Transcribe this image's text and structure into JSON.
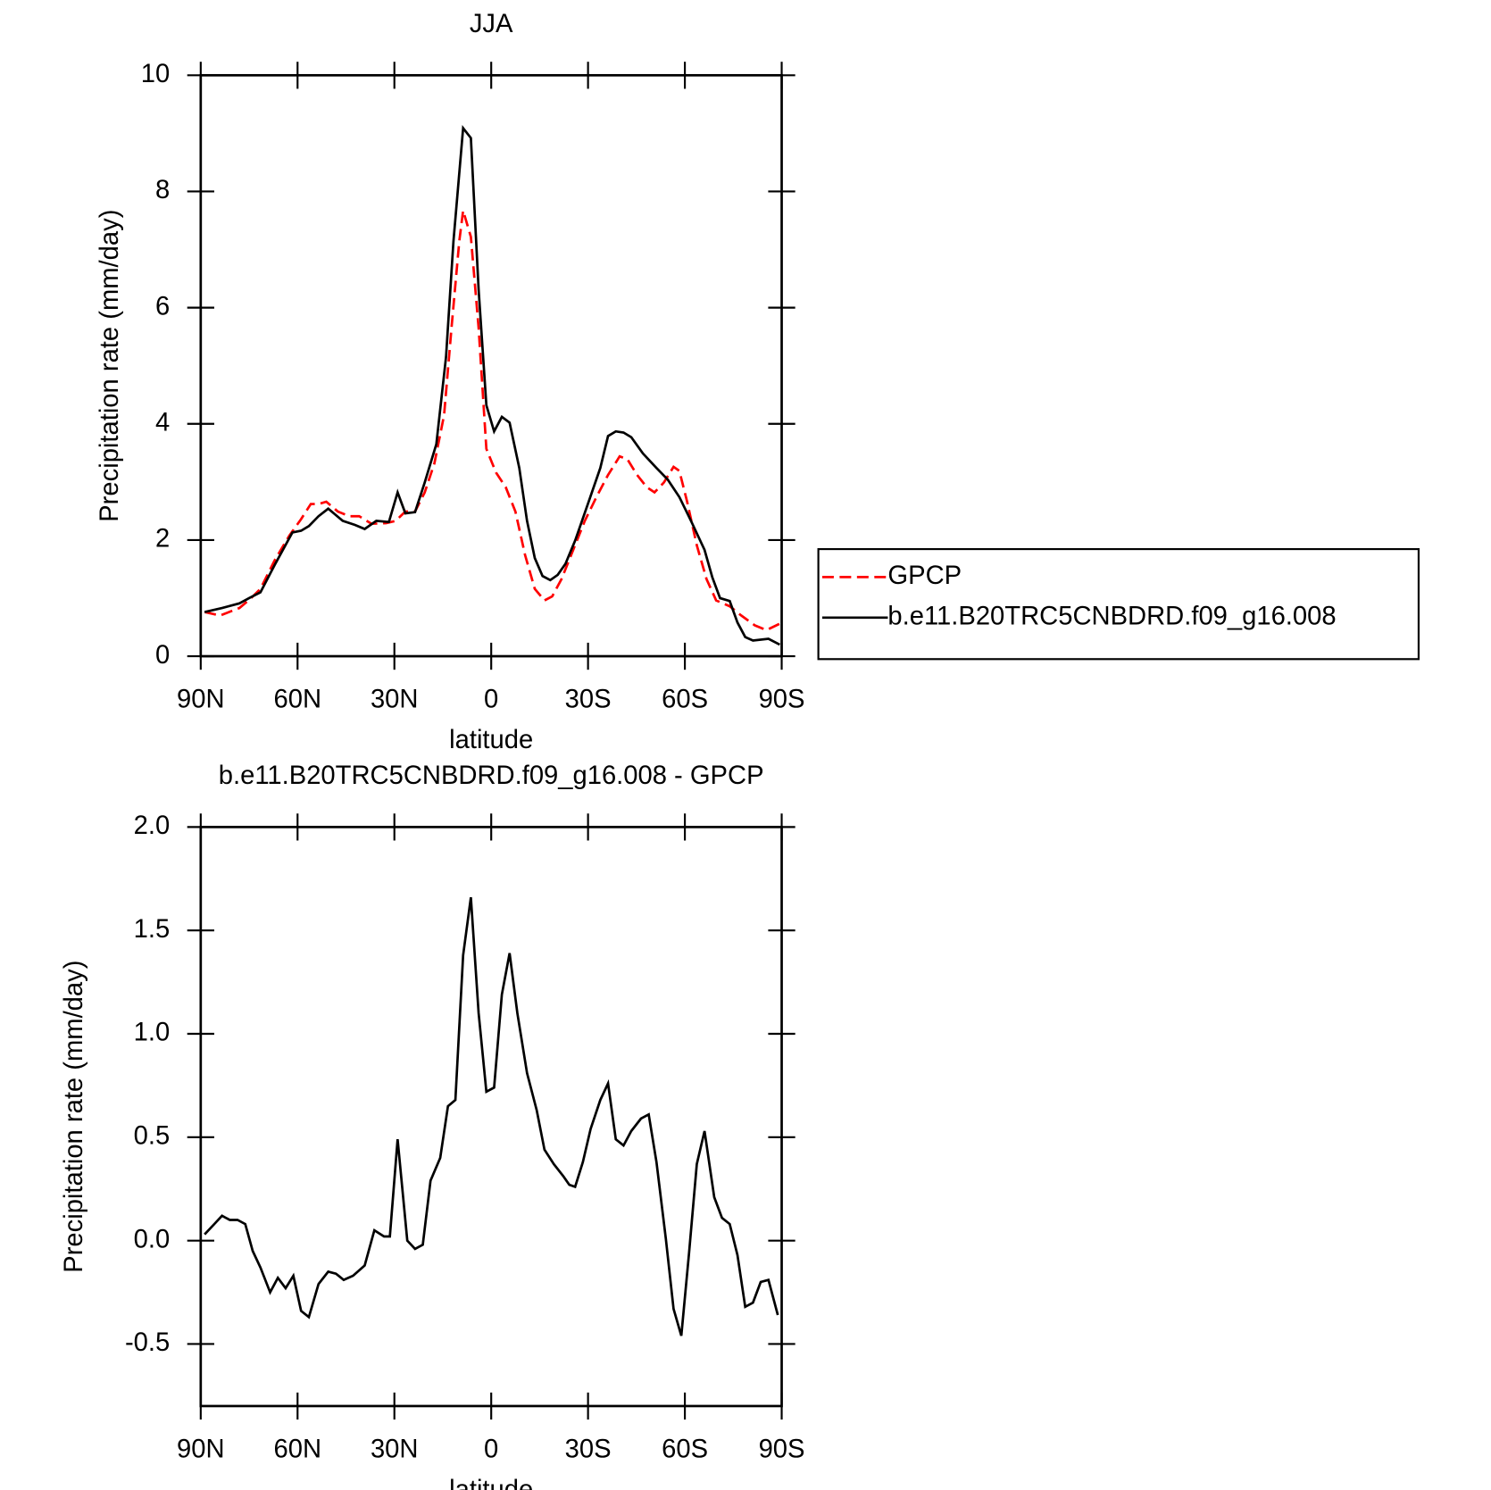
{
  "chart_data": [
    {
      "type": "line",
      "title": "JJA",
      "xlabel": "latitude",
      "ylabel": "Precipitation rate (mm/day)",
      "xlim": [
        90,
        -90
      ],
      "xticks": [
        {
          "value": 90,
          "label": "90N"
        },
        {
          "value": 60,
          "label": "60N"
        },
        {
          "value": 30,
          "label": "30N"
        },
        0,
        {
          "value": -30,
          "label": "30S"
        },
        {
          "value": -60,
          "label": "60S"
        },
        {
          "value": -90,
          "label": "90S"
        }
      ],
      "ylim": [
        0,
        10
      ],
      "yticks": [
        0,
        2,
        4,
        6,
        8,
        10
      ],
      "legend": "right",
      "series": [
        {
          "name": "GPCP",
          "color": "#ff0000",
          "linestyle": "dashed",
          "x": [
            88.8,
            84.0,
            78.0,
            74.4,
            71.5,
            67.0,
            62.5,
            58.9,
            55.9,
            53.5,
            51.1,
            47.5,
            43.9,
            40.9,
            37.1,
            32.6,
            29.6,
            26.6,
            23.6,
            20.6,
            17.6,
            14.6,
            12.3,
            9.9,
            8.7,
            6.3,
            3.9,
            1.5,
            -1.5,
            -4.5,
            -7.5,
            -10.5,
            -13.5,
            -16.5,
            -18.9,
            -21.8,
            -25.4,
            -29.0,
            -32.6,
            -36.2,
            -39.8,
            -42.2,
            -45.2,
            -48.2,
            -50.6,
            -53.5,
            -56.5,
            -58.3,
            -60.7,
            -63.7,
            -66.7,
            -69.7,
            -73.9,
            -77.5,
            -81.7,
            -85.3,
            -89.4
          ],
          "values": [
            0.76,
            0.7,
            0.83,
            1.0,
            1.16,
            1.66,
            2.08,
            2.36,
            2.62,
            2.62,
            2.66,
            2.49,
            2.41,
            2.41,
            2.28,
            2.29,
            2.33,
            2.49,
            2.49,
            2.82,
            3.32,
            4.15,
            5.65,
            7.14,
            7.67,
            7.22,
            5.65,
            3.57,
            3.16,
            2.91,
            2.49,
            1.74,
            1.16,
            0.96,
            1.03,
            1.33,
            1.83,
            2.33,
            2.74,
            3.12,
            3.44,
            3.39,
            3.12,
            2.91,
            2.82,
            2.99,
            3.26,
            3.19,
            2.66,
            1.91,
            1.33,
            0.96,
            0.86,
            0.7,
            0.53,
            0.45,
            0.56
          ]
        },
        {
          "name": "b.e11.B20TRC5CNBDRD.f09_g16.008",
          "color": "#000000",
          "linestyle": "solid",
          "x": [
            88.8,
            83.4,
            78.0,
            75.0,
            71.5,
            67.0,
            61.6,
            58.9,
            56.5,
            53.5,
            50.5,
            46.0,
            42.2,
            39.2,
            35.6,
            31.7,
            29.0,
            26.6,
            23.6,
            20.6,
            17.0,
            14.0,
            11.7,
            8.7,
            6.3,
            3.9,
            1.5,
            -0.9,
            -3.3,
            -5.7,
            -8.7,
            -11.1,
            -13.5,
            -15.9,
            -18.3,
            -20.6,
            -23.0,
            -26.0,
            -30.2,
            -33.8,
            -36.2,
            -38.6,
            -41.0,
            -43.4,
            -47.0,
            -51.2,
            -54.7,
            -58.3,
            -61.9,
            -66.1,
            -68.5,
            -70.9,
            -73.9,
            -76.3,
            -78.7,
            -81.1,
            -85.9,
            -89.4
          ],
          "values": [
            0.76,
            0.83,
            0.91,
            1.0,
            1.1,
            1.58,
            2.13,
            2.16,
            2.24,
            2.41,
            2.54,
            2.33,
            2.26,
            2.19,
            2.33,
            2.31,
            2.82,
            2.46,
            2.48,
            2.99,
            3.65,
            5.15,
            7.14,
            9.09,
            8.92,
            6.31,
            4.32,
            3.87,
            4.12,
            4.02,
            3.24,
            2.33,
            1.69,
            1.38,
            1.31,
            1.4,
            1.59,
            1.99,
            2.66,
            3.24,
            3.79,
            3.87,
            3.85,
            3.77,
            3.49,
            3.24,
            3.04,
            2.74,
            2.33,
            1.83,
            1.36,
            1.0,
            0.95,
            0.58,
            0.33,
            0.27,
            0.3,
            0.2
          ]
        }
      ]
    },
    {
      "type": "line",
      "title": "b.e11.B20TRC5CNBDRD.f09_g16.008 - GPCP",
      "xlabel": "latitude",
      "ylabel": "Precipitation rate (mm/day)",
      "xlim": [
        90,
        -90
      ],
      "xticks": [
        {
          "value": 90,
          "label": "90N"
        },
        {
          "value": 60,
          "label": "60N"
        },
        {
          "value": 30,
          "label": "30N"
        },
        0,
        {
          "value": -30,
          "label": "30S"
        },
        {
          "value": -60,
          "label": "60S"
        },
        {
          "value": -90,
          "label": "90S"
        }
      ],
      "ylim": [
        -0.8,
        2.0
      ],
      "yticks": [
        -0.5,
        {
          "value": 0,
          "label": "0.0"
        },
        0.5,
        {
          "value": 1,
          "label": "1.0"
        },
        1.5,
        {
          "value": 2,
          "label": "2.0"
        }
      ],
      "series": [
        {
          "color": "#000000",
          "linestyle": "solid",
          "x": [
            88.8,
            85.8,
            83.4,
            81.0,
            78.6,
            76.2,
            73.9,
            71.5,
            68.5,
            66.1,
            63.7,
            61.3,
            58.9,
            56.5,
            53.5,
            50.5,
            48.1,
            45.7,
            42.8,
            39.2,
            36.2,
            33.2,
            31.4,
            29.0,
            26.0,
            23.6,
            21.2,
            18.8,
            15.8,
            13.4,
            11.1,
            8.7,
            6.3,
            3.9,
            1.5,
            -0.9,
            -3.3,
            -5.7,
            -8.1,
            -11.1,
            -14.1,
            -16.5,
            -19.4,
            -22.4,
            -24.2,
            -26.0,
            -28.4,
            -30.8,
            -33.8,
            -36.2,
            -38.6,
            -41.0,
            -43.4,
            -46.4,
            -48.8,
            -51.2,
            -54.1,
            -56.5,
            -58.9,
            -61.3,
            -63.7,
            -66.1,
            -69.1,
            -71.5,
            -73.9,
            -76.3,
            -78.7,
            -81.1,
            -83.5,
            -85.9,
            -88.8
          ],
          "values": [
            0.03,
            0.08,
            0.12,
            0.1,
            0.1,
            0.08,
            -0.05,
            -0.13,
            -0.25,
            -0.18,
            -0.23,
            -0.17,
            -0.34,
            -0.37,
            -0.21,
            -0.15,
            -0.16,
            -0.19,
            -0.17,
            -0.12,
            0.05,
            0.02,
            0.02,
            0.49,
            0.0,
            -0.04,
            -0.02,
            0.29,
            0.4,
            0.65,
            0.68,
            1.38,
            1.66,
            1.1,
            0.72,
            0.74,
            1.19,
            1.39,
            1.1,
            0.81,
            0.63,
            0.44,
            0.37,
            0.31,
            0.27,
            0.26,
            0.38,
            0.54,
            0.68,
            0.76,
            0.49,
            0.46,
            0.53,
            0.59,
            0.61,
            0.38,
            0.01,
            -0.33,
            -0.46,
            -0.06,
            0.37,
            0.53,
            0.21,
            0.11,
            0.08,
            -0.07,
            -0.32,
            -0.3,
            -0.2,
            -0.19,
            -0.36
          ]
        }
      ]
    }
  ]
}
